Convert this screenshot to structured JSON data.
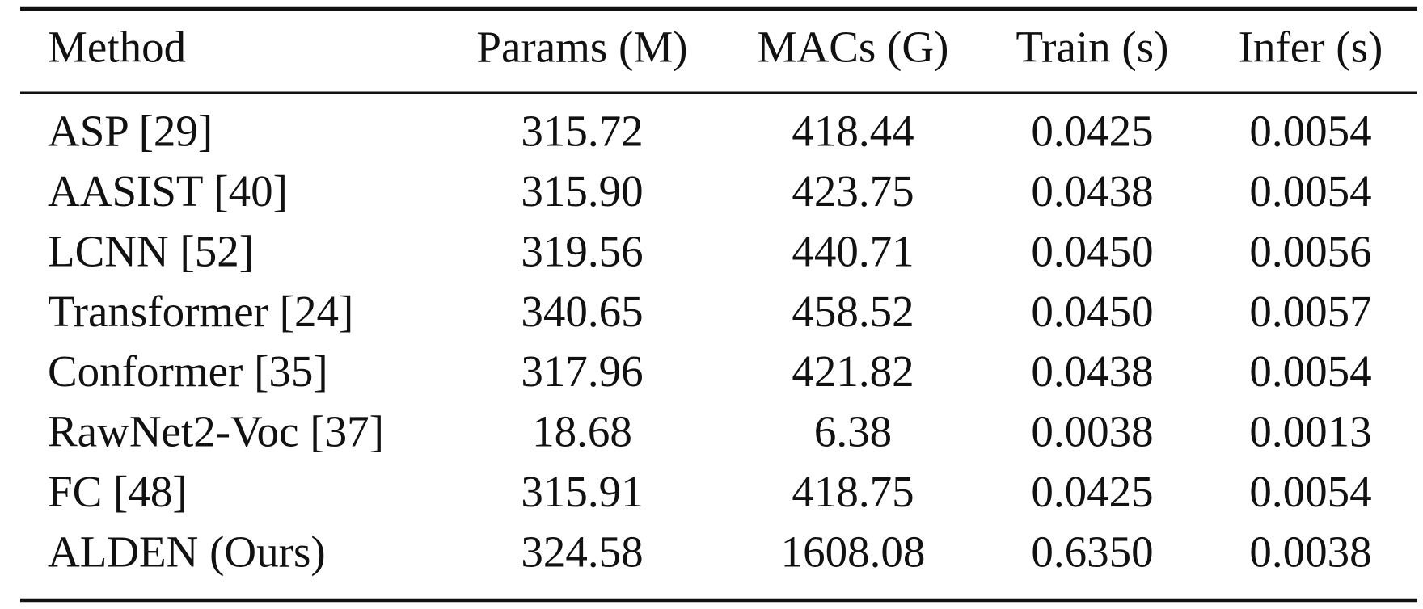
{
  "table": {
    "header": [
      "Method",
      "Params (M)",
      "MACs (G)",
      "Train (s)",
      "Infer (s)"
    ],
    "rows": [
      [
        "ASP [29]",
        "315.72",
        "418.44",
        "0.0425",
        "0.0054"
      ],
      [
        "AASIST [40]",
        "315.90",
        "423.75",
        "0.0438",
        "0.0054"
      ],
      [
        "LCNN [52]",
        "319.56",
        "440.71",
        "0.0450",
        "0.0056"
      ],
      [
        "Transformer [24]",
        "340.65",
        "458.52",
        "0.0450",
        "0.0057"
      ],
      [
        "Conformer [35]",
        "317.96",
        "421.82",
        "0.0438",
        "0.0054"
      ],
      [
        "RawNet2-Voc [37]",
        "18.68",
        "6.38",
        "0.0038",
        "0.0013"
      ],
      [
        "FC [48]",
        "315.91",
        "418.75",
        "0.0425",
        "0.0054"
      ],
      [
        "ALDEN (Ours)",
        "324.58",
        "1608.08",
        "0.6350",
        "0.0038"
      ]
    ]
  }
}
